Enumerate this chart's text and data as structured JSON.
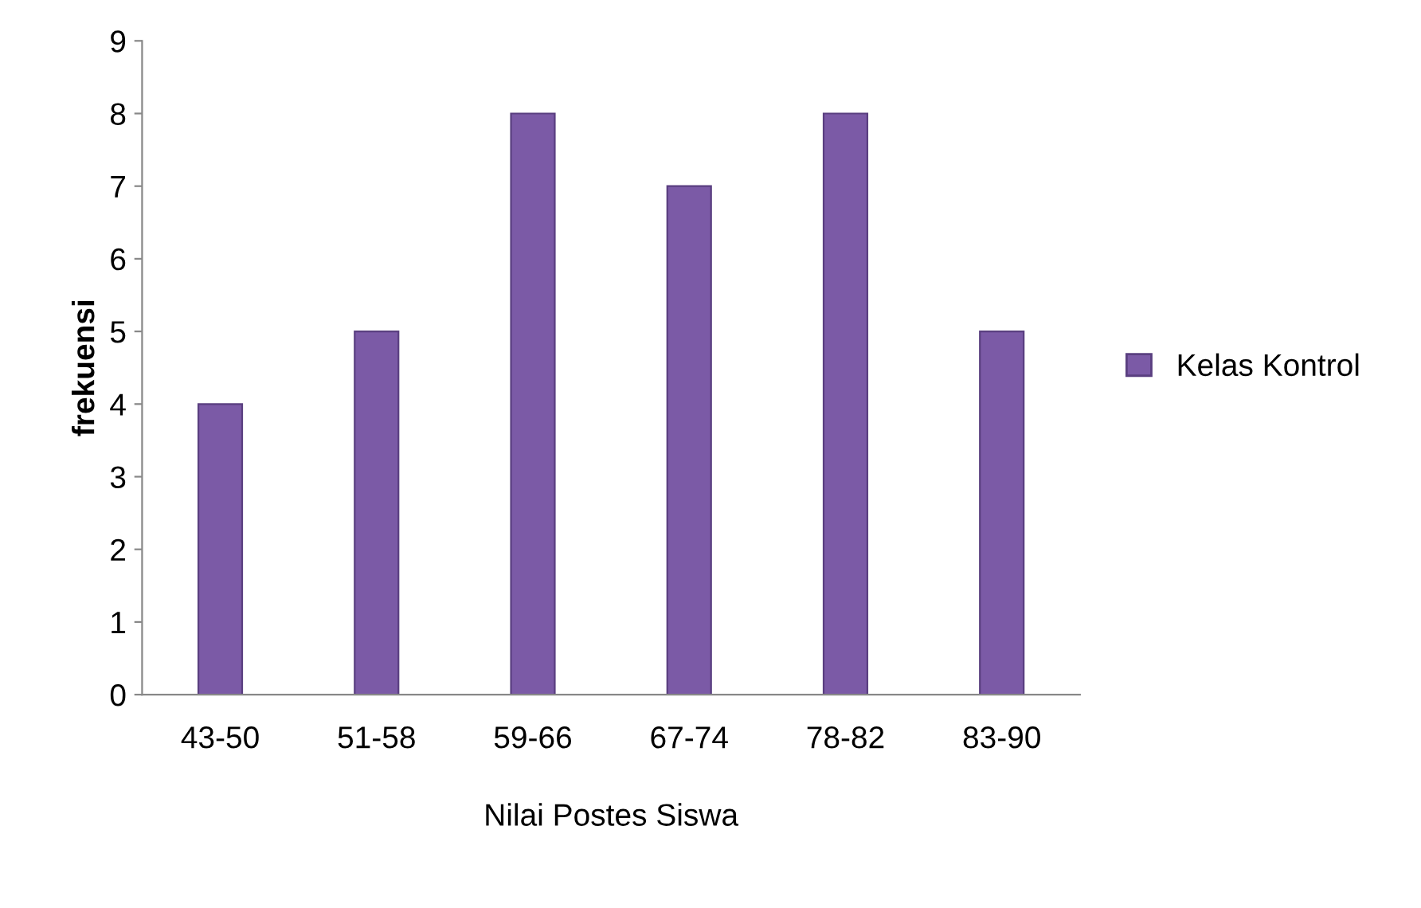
{
  "chart_data": {
    "type": "bar",
    "xlabel": "Nilai Postes Siswa",
    "ylabel": "frekuensi",
    "categories": [
      "43-50",
      "51-58",
      "59-66",
      "67-74",
      "78-82",
      "83-90"
    ],
    "series": [
      {
        "name": "Kelas Kontrol",
        "color": "#7b5aa6",
        "values": [
          4,
          5,
          8,
          7,
          8,
          5
        ]
      }
    ],
    "ylim": [
      0,
      9
    ],
    "yticks": [
      0,
      1,
      2,
      3,
      4,
      5,
      6,
      7,
      8,
      9
    ],
    "grid": false,
    "legend": "right"
  }
}
